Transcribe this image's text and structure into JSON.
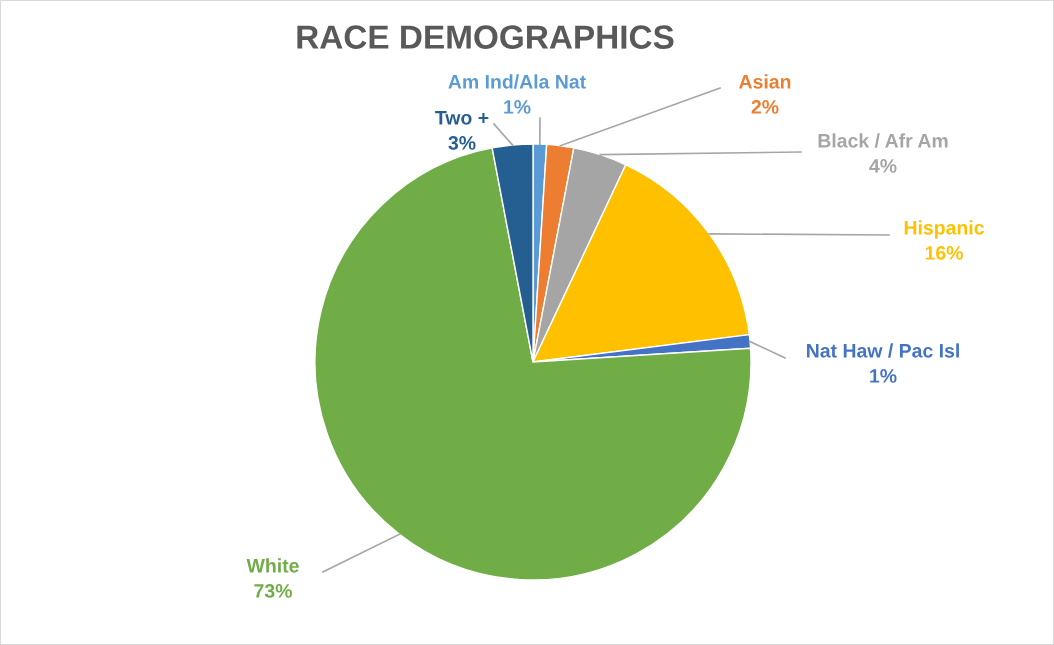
{
  "chart_data": {
    "type": "pie",
    "title": "RACE DEMOGRAPHICS",
    "categories": [
      "Am Ind/Ala Nat",
      "Asian",
      "Black / Afr Am",
      "Hispanic",
      "Nat Haw / Pac Isl",
      "White",
      "Two +"
    ],
    "values": [
      1,
      2,
      4,
      16,
      1,
      73,
      3
    ],
    "value_labels": [
      "1%",
      "2%",
      "4%",
      "16%",
      "1%",
      "73%",
      "3%"
    ],
    "colors": [
      "#5b9bd5",
      "#ed7d31",
      "#a5a5a5",
      "#ffc000",
      "#4472c4",
      "#70ad47",
      "#255e91"
    ],
    "legend": false
  }
}
